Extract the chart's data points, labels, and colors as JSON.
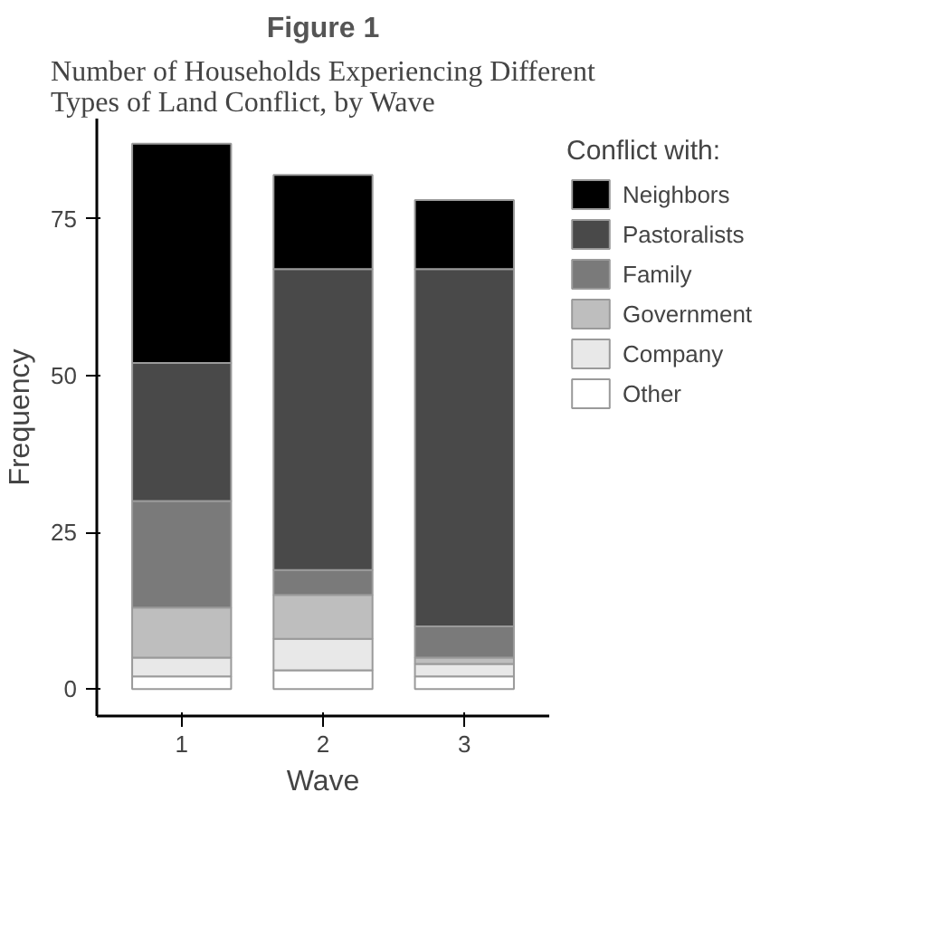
{
  "chart_data": {
    "type": "bar",
    "title": "Figure 1",
    "subtitle": "Number of Households Experiencing Different Types of Land Conflict, by Wave",
    "xlabel": "Wave",
    "ylabel": "Frequency",
    "legend_title": "Conflict with:",
    "categories": [
      "1",
      "2",
      "3"
    ],
    "stacked": true,
    "ylim": [
      -4.3,
      91
    ],
    "yticks": [
      0,
      25,
      50,
      75
    ],
    "grid": false,
    "legend": "right",
    "series": [
      {
        "name": "Other",
        "color": "#ffffff",
        "values": [
          2,
          3,
          2
        ]
      },
      {
        "name": "Company",
        "color": "#e8e8e8",
        "values": [
          3,
          5,
          2
        ]
      },
      {
        "name": "Government",
        "color": "#bebebe",
        "values": [
          8,
          7,
          1
        ]
      },
      {
        "name": "Family",
        "color": "#7a7a7a",
        "values": [
          17,
          4,
          5
        ]
      },
      {
        "name": "Pastoralists",
        "color": "#494949",
        "values": [
          22,
          48,
          57
        ]
      },
      {
        "name": "Neighbors",
        "color": "#000000",
        "values": [
          35,
          15,
          11
        ]
      }
    ]
  }
}
